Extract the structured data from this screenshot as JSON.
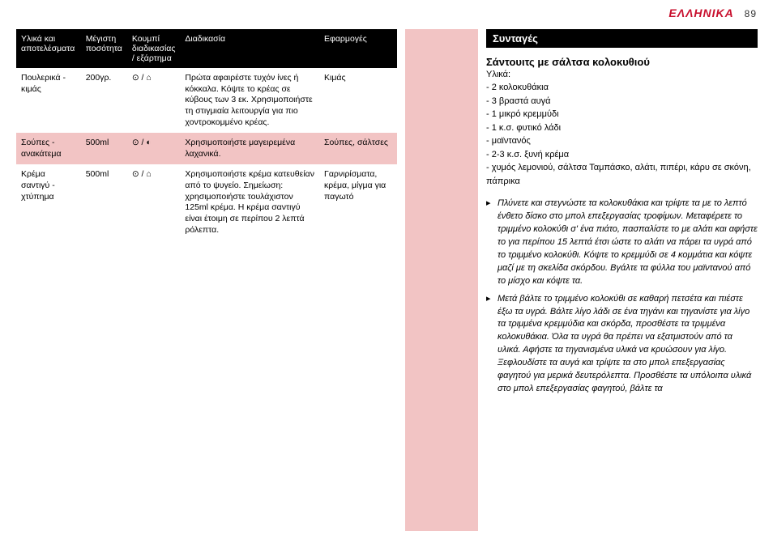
{
  "header": {
    "language": "ΕΛΛΗΝΙΚΑ",
    "pageNumber": "89"
  },
  "table": {
    "headers": [
      "Υλικά και αποτελέσματα",
      "Μέγιστη ποσότητα",
      "Κουμπί διαδικασίας / εξάρτημα",
      "Διαδικασία",
      "Εφαρμογές"
    ],
    "rows": [
      {
        "alt": false,
        "cells": [
          "Πουλερικά - κιμάς",
          "200γρ.",
          "⊙ / ⌂",
          "Πρώτα αφαιρέστε τυχόν ίνες ή κόκκαλα. Κόψτε το κρέας σε κύβους των 3 εκ. Χρησιμοποιήστε τη στιγμιαία λειτουργία για πιο χοντροκομμένο κρέας.",
          "Κιμάς"
        ]
      },
      {
        "alt": true,
        "cells": [
          "Σούπες - ανακάτεμα",
          "500ml",
          "⊙ / ◐",
          "Χρησιμοποιήστε μαγειρεμένα λαχανικά.",
          "Σούπες, σάλτσες"
        ]
      },
      {
        "alt": false,
        "cells": [
          "Κρέμα σαντιγύ - χτύπημα",
          "500ml",
          "⊙ / ⌂",
          "Χρησιμοποιήστε κρέμα κατευθείαν από το ψυγείο. Σημείωση: χρησιμοποιήστε τουλάχιστον 125ml κρέμα. Η κρέμα σαντιγύ είναι έτοιμη σε περίπου 2 λεπτά ρόλεπτα.",
          "Γαρνιρίσματα, κρέμα, μίγμα για παγωτό"
        ]
      }
    ]
  },
  "rightPanel": {
    "sectionTitle": "Συνταγές",
    "recipeTitle": "Σάντουιτς  με σάλτσα κολοκυθιού",
    "ingredientsLabel": "Υλικά:",
    "ingredients": [
      "2 κολοκυθάκια",
      "3 βραστά αυγά",
      "1 μικρό κρεμμύδι",
      "1 κ.σ. φυτικό λάδι",
      "μαϊντανός",
      "2-3 κ.σ. ξυνή κρέμα",
      "χυμός λεμονιού, σάλτσα Ταμπάσκο, αλάτι, πιπέρι, κάρυ σε σκόνη, πάπρικα"
    ],
    "steps": [
      "Πλύνετε και στεγνώστε τα κολοκυθάκια και τρίψτε τα με το λεπτό ένθετο δίσκο στο μπολ επεξεργασίας τροφίμων. Μεταφέρετε το τριμμένο κολοκύθι σ' ένα πιάτο, πασπαλίστε το με αλάτι και αφήστε το για περίπου 15 λεπτά έτσι ώστε το αλάτι να πάρει τα υγρά από το τριμμένο κολοκύθι. Κόψτε το κρεμμύδι σε 4 κομμάτια και κόψτε μαζί με τη σκελίδα σκόρδου. Βγάλτε τα φύλλα του μαϊντανού από το μίσχο και κόψτε τα.",
      "Μετά βάλτε το τριμμένο κολοκύθι σε καθαρή πετσέτα και πιέστε έξω τα υγρά. Βάλτε λίγο λάδι σε ένα τηγάνι και τηγανίστε για λίγο τα τριμμένα κρεμμύδια και σκόρδα, προσθέστε τα τριμμένα κολοκυθάκια. Όλα τα υγρά θα πρέπει να εξατμιστούν από τα υλικά. Αφήστε τα τηγανισμένα υλικά να κρυώσουν για λίγο. Ξεφλουδίστε τα αυγά και τρίψτε τα στο μπολ επεξεργασίας φαγητού για μερικά δευτερόλεπτα. Προσθέστε τα υπόλοιπα υλικά στο μπολ επεξεργασίας φαγητού, βάλτε τα"
    ]
  },
  "colors": {
    "brandRed": "#c8102e",
    "highlightPink": "#f2c4c4",
    "headerBg": "#000000",
    "headerText": "#ffffff"
  }
}
